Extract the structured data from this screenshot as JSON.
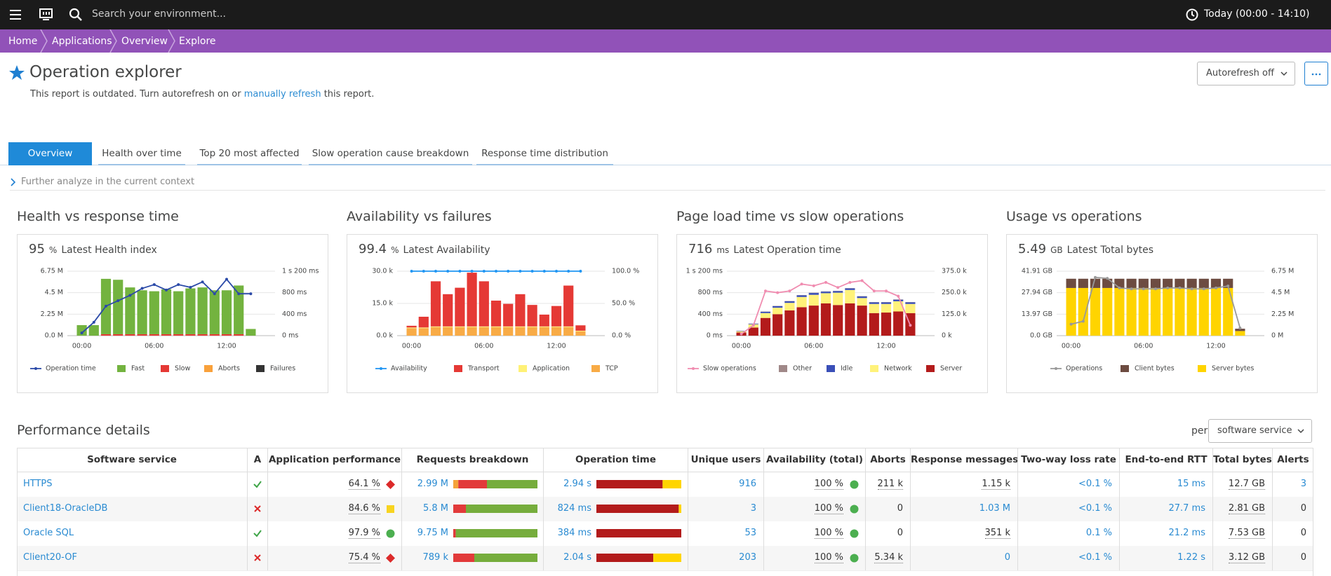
{
  "top_bar": {
    "search_placeholder": "Search your environment...",
    "timeframe": "Today (00:00 - 14:10)"
  },
  "breadcrumbs": [
    "Home",
    "Applications",
    "Overview",
    "Explore"
  ],
  "header": {
    "title": "Operation explorer",
    "notice": "This report is outdated. Turn autorefresh on or",
    "notice_link": "manually refresh",
    "notice_end": "this report.",
    "autorefresh": "Autorefresh off"
  },
  "tabs": [
    "Overview",
    "Health over time",
    "Top 20 most affected",
    "Slow operation cause breakdown",
    "Response time distribution"
  ],
  "further": "Further analyze in the current context",
  "panels": [
    {
      "title": "Health vs response time",
      "kpi": {
        "value": 95,
        "unit": "%",
        "label": "Latest Health index"
      },
      "chart": {
        "type": "bar",
        "categories": [
          "00:00",
          null,
          null,
          null,
          null,
          null,
          "06:00",
          null,
          null,
          null,
          null,
          null,
          "12:00",
          null,
          null
        ],
        "ylim": [
          0,
          6750000
        ],
        "yticks": [
          {
            "value": 0,
            "label": "0.0 M"
          },
          {
            "value": 2250000,
            "label": "2.25 M"
          },
          {
            "value": 4500000,
            "label": "4.5 M"
          },
          {
            "value": 6750000,
            "label": "6.75 M"
          }
        ],
        "y2lim": [
          0,
          1200
        ],
        "y2ticks": [
          {
            "value": 0,
            "label": "0 ms"
          },
          {
            "value": 400,
            "label": "400 ms"
          },
          {
            "value": 800,
            "label": "800 ms"
          },
          {
            "value": 1200,
            "label": "1 s 200 ms"
          }
        ],
        "series": [
          {
            "name": "Operation time",
            "type": "line",
            "axis": "y2",
            "color": "#2b4aa8",
            "values": [
              50,
              250,
              550,
              650,
              750,
              880,
              950,
              850,
              950,
              900,
              1000,
              780,
              1050,
              780,
              780
            ]
          },
          {
            "name": "Fast",
            "color": "#73b33f",
            "values": [
              1100000,
              1100000,
              5800000,
              5700000,
              4900000,
              4600000,
              4500000,
              4700000,
              4500000,
              4800000,
              4900000,
              4600000,
              4600000,
              5100000,
              700000
            ]
          },
          {
            "name": "Slow",
            "color": "#e53935",
            "values": [
              0,
              0,
              150000,
              150000,
              150000,
              150000,
              150000,
              150000,
              150000,
              150000,
              150000,
              150000,
              150000,
              150000,
              0
            ]
          },
          {
            "name": "Aborts",
            "color": "#f9a13b",
            "values": [
              0,
              0,
              0,
              0,
              0,
              0,
              0,
              0,
              0,
              0,
              0,
              0,
              0,
              0,
              0
            ]
          },
          {
            "name": "Failures",
            "color": "#333333",
            "values": [
              0,
              0,
              0,
              0,
              0,
              0,
              0,
              0,
              0,
              0,
              0,
              0,
              0,
              0,
              0
            ]
          }
        ]
      }
    },
    {
      "title": "Availability vs failures",
      "kpi": {
        "value": 99.4,
        "unit": "%",
        "label": "Latest Availability"
      },
      "chart": {
        "type": "bar",
        "categories": [
          "00:00",
          null,
          null,
          null,
          null,
          null,
          "06:00",
          null,
          null,
          null,
          null,
          null,
          "12:00",
          null,
          null
        ],
        "ylim": [
          0,
          30000
        ],
        "yticks": [
          {
            "value": 0,
            "label": "0.0 k"
          },
          {
            "value": 15000,
            "label": "15.0 k"
          },
          {
            "value": 30000,
            "label": "30.0 k"
          }
        ],
        "y2lim": [
          0,
          100
        ],
        "y2ticks": [
          {
            "value": 0,
            "label": "0.0 %"
          },
          {
            "value": 50,
            "label": "50.0 %"
          },
          {
            "value": 100,
            "label": "100.0 %"
          }
        ],
        "series": [
          {
            "name": "Availability",
            "type": "line",
            "axis": "y2",
            "color": "#2196f3",
            "values": [
              100,
              100,
              100,
              100,
              100,
              100,
              100,
              100,
              100,
              100,
              100,
              100,
              100,
              100,
              100
            ]
          },
          {
            "name": "Transport",
            "color": "#e53935",
            "values": [
              800,
              5000,
              21000,
              15000,
              18000,
              25000,
              21000,
              12000,
              10500,
              15000,
              10000,
              5500,
              9500,
              19000,
              2500
            ]
          },
          {
            "name": "Application",
            "color": "#fff176",
            "values": [
              300,
              300,
              300,
              300,
              300,
              300,
              300,
              300,
              300,
              300,
              300,
              300,
              300,
              300,
              300
            ]
          },
          {
            "name": "TCP",
            "color": "#f8ab46",
            "values": [
              3500,
              3500,
              4000,
              4000,
              4000,
              4000,
              4000,
              4000,
              4000,
              4000,
              4000,
              4000,
              4000,
              4000,
              2000
            ]
          }
        ]
      }
    },
    {
      "title": "Page load time vs slow operations",
      "kpi": {
        "value": 716,
        "unit": "ms",
        "label": "Latest Operation time"
      },
      "chart": {
        "type": "bar",
        "categories": [
          "00:00",
          null,
          null,
          null,
          null,
          null,
          "06:00",
          null,
          null,
          null,
          null,
          null,
          "12:00",
          null,
          null
        ],
        "ylim": [
          0,
          1200
        ],
        "yticks": [
          {
            "value": 0,
            "label": "0 ms"
          },
          {
            "value": 400,
            "label": "400 ms"
          },
          {
            "value": 800,
            "label": "800 ms"
          },
          {
            "value": 1200,
            "label": "1 s 200 ms"
          }
        ],
        "y2lim": [
          0,
          375000
        ],
        "y2ticks": [
          {
            "value": 0,
            "label": "0 k"
          },
          {
            "value": 125000,
            "label": "125.0 k"
          },
          {
            "value": 250000,
            "label": "250.0 k"
          },
          {
            "value": 375000,
            "label": "375.0 k"
          }
        ],
        "series": [
          {
            "name": "Slow operations",
            "type": "line",
            "axis": "y2",
            "color": "#f08cb0",
            "values": [
              10000,
              60000,
              260000,
              250000,
              260000,
              300000,
              290000,
              310000,
              280000,
              310000,
              320000,
              260000,
              260000,
              230000,
              60000
            ]
          },
          {
            "name": "Other",
            "color": "#a08888",
            "values": [
              5,
              5,
              5,
              5,
              5,
              5,
              5,
              5,
              5,
              5,
              5,
              5,
              5,
              5,
              5
            ]
          },
          {
            "name": "Idle",
            "color": "#3a4fb8",
            "values": [
              5,
              10,
              25,
              30,
              30,
              30,
              35,
              30,
              30,
              30,
              30,
              30,
              30,
              30,
              30
            ]
          },
          {
            "name": "Network",
            "color": "#fff27a",
            "values": [
              20,
              60,
              90,
              120,
              140,
              190,
              200,
              190,
              230,
              250,
              140,
              170,
              160,
              190,
              170
            ]
          },
          {
            "name": "Server",
            "color": "#b31b1b",
            "values": [
              60,
              150,
              330,
              400,
              470,
              530,
              560,
              600,
              570,
              600,
              560,
              420,
              430,
              450,
              420
            ]
          }
        ]
      }
    },
    {
      "title": "Usage vs operations",
      "kpi": {
        "value": 5.49,
        "unit": "GB",
        "label": "Latest Total bytes"
      },
      "chart": {
        "type": "bar",
        "categories": [
          "00:00",
          null,
          null,
          null,
          null,
          null,
          "06:00",
          null,
          null,
          null,
          null,
          null,
          "12:00",
          null,
          null
        ],
        "ylim": [
          0,
          41.91
        ],
        "yticks": [
          {
            "value": 0,
            "label": "0.0 GB"
          },
          {
            "value": 13.97,
            "label": "13.97 GB"
          },
          {
            "value": 27.94,
            "label": "27.94 GB"
          },
          {
            "value": 41.91,
            "label": "41.91 GB"
          }
        ],
        "y2lim": [
          0,
          6750000
        ],
        "y2ticks": [
          {
            "value": 0,
            "label": "0 M"
          },
          {
            "value": 2250000,
            "label": "2.25 M"
          },
          {
            "value": 4500000,
            "label": "4.5 M"
          },
          {
            "value": 6750000,
            "label": "6.75 M"
          }
        ],
        "series": [
          {
            "name": "Operations",
            "type": "line",
            "axis": "y2",
            "color": "#999999",
            "values": [
              1200000,
              1500000,
              6100000,
              6000000,
              5000000,
              4900000,
              4900000,
              4900000,
              5000000,
              5000000,
              4900000,
              4900000,
              5000000,
              5200000,
              800000
            ]
          },
          {
            "name": "Client bytes",
            "color": "#6d4c41",
            "values": [
              6,
              6,
              6,
              6,
              6,
              6,
              6,
              6,
              6,
              6,
              6,
              6,
              6,
              6,
              1.5
            ]
          },
          {
            "name": "Server bytes",
            "color": "#ffd400",
            "values": [
              31,
              31,
              31,
              31,
              31,
              31,
              31,
              31,
              31,
              31,
              31,
              31,
              31,
              31,
              3
            ]
          }
        ]
      }
    }
  ],
  "performance": {
    "title": "Performance details",
    "per": "per",
    "per_value": "software service",
    "columns": [
      "Software service",
      "A",
      "Application performance",
      "Requests breakdown",
      "Operation time",
      "Unique users",
      "Availability (total)",
      "Aborts",
      "Response messages",
      "Two-way loss rate",
      "End-to-end RTT",
      "Total bytes",
      "Alerts"
    ],
    "rows": [
      {
        "service": "HTTPS",
        "app_perf": "64.1 %",
        "requests": "2.99 M",
        "requests_breakdown": [
          6,
          34,
          60
        ],
        "op_time": "2.94 s",
        "op_time_breakdown": [
          78,
          22
        ],
        "users": 916,
        "availability": "100 %",
        "aborts": "211 k",
        "response_messages": "1.15 k",
        "loss": "<0.1 %",
        "rtt": "15 ms",
        "bytes": "12.7 GB",
        "alerts": 3
      },
      {
        "service": "Client18-OracleDB",
        "app_perf": "84.6 %",
        "requests": "5.8 M",
        "requests_breakdown": [
          0,
          15,
          85
        ],
        "op_time": "824 ms",
        "op_time_breakdown": [
          97,
          3
        ],
        "users": 3,
        "availability": "100 %",
        "aborts": 0,
        "response_messages": "1.03 M",
        "loss": "<0.1 %",
        "rtt": "27.7 ms",
        "bytes": "2.81 GB",
        "alerts": 0
      },
      {
        "service": "Oracle SQL",
        "app_perf": "97.9 %",
        "requests": "9.75 M",
        "requests_breakdown": [
          0,
          3,
          97
        ],
        "op_time": "384 ms",
        "op_time_breakdown": [
          100,
          0
        ],
        "users": 53,
        "availability": "100 %",
        "aborts": 0,
        "response_messages": "351 k",
        "loss": "0.1 %",
        "rtt": "21.2 ms",
        "bytes": "7.53 GB",
        "alerts": 0
      },
      {
        "service": "Client20-OF",
        "app_perf": "75.4 %",
        "requests": "789 k",
        "requests_breakdown": [
          0,
          25,
          75
        ],
        "op_time": "2.04 s",
        "op_time_breakdown": [
          67,
          33
        ],
        "users": 203,
        "availability": "100 %",
        "aborts": "5.34 k",
        "response_messages": 0,
        "loss": "<0.1 %",
        "rtt": "1.22 s",
        "bytes": "3.12 GB",
        "alerts": 0
      }
    ]
  }
}
